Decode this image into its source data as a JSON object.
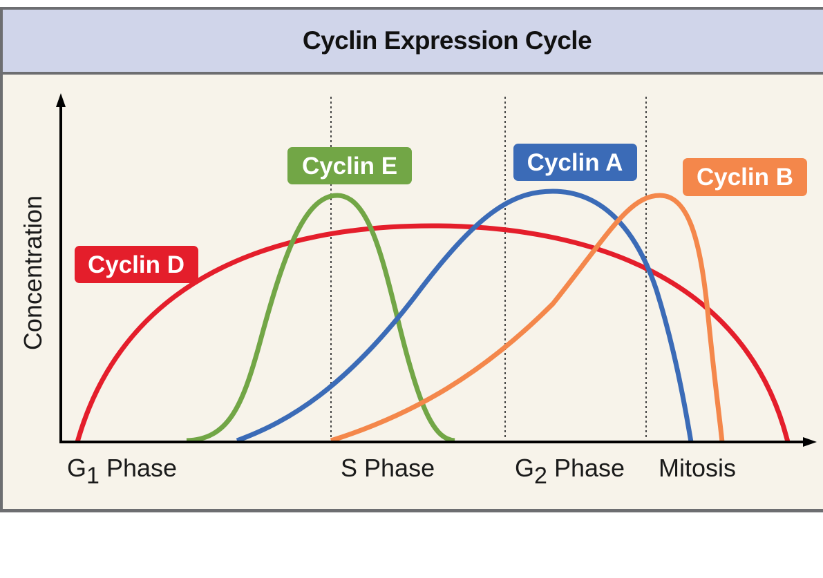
{
  "title": "Cyclin Expression Cycle",
  "y_axis_label": "Concentration",
  "phases": [
    {
      "main": "G",
      "sub": "1",
      "rest": " Phase"
    },
    {
      "main": "S Phase",
      "sub": "",
      "rest": ""
    },
    {
      "main": "G",
      "sub": "2",
      "rest": " Phase"
    },
    {
      "main": "Mitosis",
      "sub": "",
      "rest": ""
    }
  ],
  "cyclins": [
    {
      "label": "Cyclin D",
      "color": "#e41e2b"
    },
    {
      "label": "Cyclin E",
      "color": "#72a646"
    },
    {
      "label": "Cyclin A",
      "color": "#3b6bb7"
    },
    {
      "label": "Cyclin B",
      "color": "#f4874b"
    }
  ],
  "colors": {
    "header": "#d0d5ea",
    "background": "#f7f3ea",
    "border": "#6d6e71"
  }
}
